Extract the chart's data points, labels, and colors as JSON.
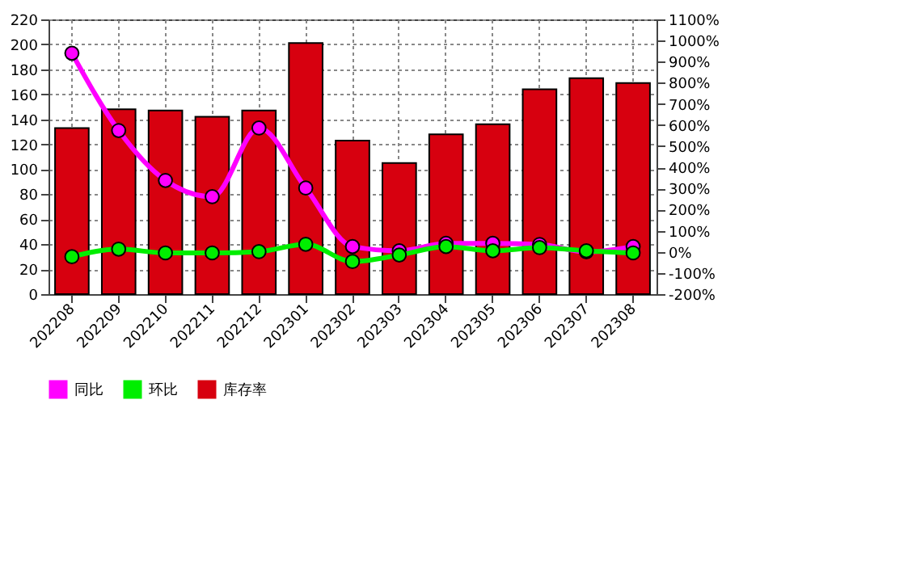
{
  "chart_data": {
    "type": "bar",
    "categories": [
      "202208",
      "202209",
      "202210",
      "202211",
      "202212",
      "202301",
      "202302",
      "202303",
      "202304",
      "202305",
      "202306",
      "202307",
      "202308"
    ],
    "series": [
      {
        "name": "同比",
        "type": "line",
        "axis": "y2",
        "color": "#ff00ff",
        "values": [
          940,
          574,
          338,
          261,
          586,
          302,
          25,
          5,
          40,
          40,
          35,
          0,
          25
        ]
      },
      {
        "name": "环比",
        "type": "line",
        "axis": "y2",
        "color": "#00ee00",
        "values": [
          -23,
          13,
          -5,
          -5,
          1,
          36,
          -46,
          -15,
          25,
          5,
          20,
          5,
          -5
        ]
      },
      {
        "name": "库存率",
        "color": "#d7000f",
        "values": [
          133,
          148,
          147,
          142,
          147,
          201,
          123,
          105,
          128,
          136,
          164,
          173,
          169
        ]
      }
    ],
    "ylim": [
      0,
      220
    ],
    "yticks": [
      0,
      20,
      40,
      60,
      80,
      100,
      120,
      140,
      160,
      180,
      200,
      220
    ],
    "y2lim": [
      -200,
      1100
    ],
    "y2ticks": [
      {
        "value": -200,
        "label": "-200%"
      },
      {
        "value": -100,
        "label": "-100%"
      },
      {
        "value": 0,
        "label": "0%"
      },
      {
        "value": 100,
        "label": "100%"
      },
      {
        "value": 200,
        "label": "200%"
      },
      {
        "value": 300,
        "label": "300%"
      },
      {
        "value": 400,
        "label": "400%"
      },
      {
        "value": 500,
        "label": "500%"
      },
      {
        "value": 600,
        "label": "600%"
      },
      {
        "value": 700,
        "label": "700%"
      },
      {
        "value": 800,
        "label": "800%"
      },
      {
        "value": 900,
        "label": "900%"
      },
      {
        "value": 1000,
        "label": "1000%"
      },
      {
        "value": 1100,
        "label": "1100%"
      }
    ],
    "grid": true,
    "legend": "bottom",
    "marker": "circle",
    "line_style": "solid"
  }
}
